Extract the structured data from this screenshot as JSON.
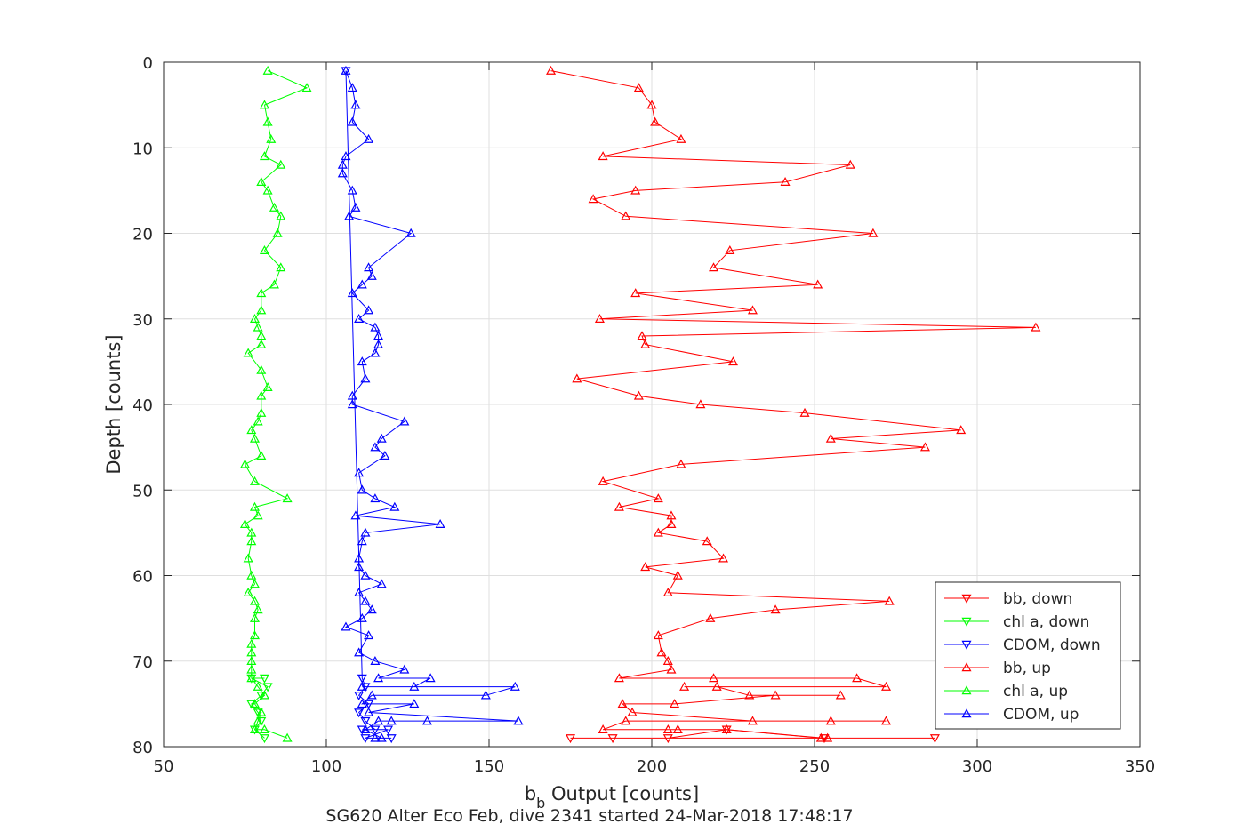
{
  "chart_data": {
    "type": "line",
    "title": "",
    "caption": "SG620 Alter Eco Feb, dive 2341 started 24-Mar-2018 17:48:17",
    "xlabel": {
      "base": "b",
      "subscript": "b",
      "rest": " Output [counts]"
    },
    "ylabel": "Depth [counts]",
    "xlim": [
      50,
      350
    ],
    "ylim": [
      0,
      80
    ],
    "y_reversed": true,
    "xticks": [
      50,
      100,
      150,
      200,
      250,
      300,
      350
    ],
    "yticks": [
      0,
      10,
      20,
      30,
      40,
      50,
      60,
      70,
      80
    ],
    "grid": true,
    "legend_position": "bottom-right",
    "series": [
      {
        "name": "bb, down",
        "color": "#ff0000",
        "marker": "triangle-down",
        "points": [
          [
            188,
            79
          ],
          [
            205,
            79
          ],
          [
            223,
            78
          ],
          [
            253,
            79
          ],
          [
            287,
            79
          ],
          [
            175,
            79
          ]
        ]
      },
      {
        "name": "chl a, down",
        "color": "#00ff00",
        "marker": "triangle-down",
        "points": [
          [
            81,
            79
          ],
          [
            78,
            78
          ],
          [
            80,
            77
          ],
          [
            79,
            76
          ],
          [
            77,
            75
          ],
          [
            80,
            74
          ],
          [
            82,
            73
          ],
          [
            77,
            72
          ],
          [
            81,
            72
          ]
        ]
      },
      {
        "name": "CDOM, down",
        "color": "#0000ff",
        "marker": "triangle-down",
        "points": [
          [
            120,
            79
          ],
          [
            112,
            79
          ],
          [
            119,
            78
          ],
          [
            111,
            78
          ],
          [
            115,
            78
          ],
          [
            112,
            77
          ],
          [
            110,
            76
          ],
          [
            113,
            75
          ],
          [
            110,
            74
          ],
          [
            112,
            73
          ],
          [
            111,
            72
          ],
          [
            106,
            1
          ]
        ]
      },
      {
        "name": "bb, up",
        "color": "#ff0000",
        "marker": "triangle-up",
        "points": [
          [
            254,
            79
          ],
          [
            252,
            79
          ],
          [
            223,
            78
          ],
          [
            205,
            78
          ],
          [
            208,
            78
          ],
          [
            185,
            78
          ],
          [
            192,
            77
          ],
          [
            255,
            77
          ],
          [
            272,
            77
          ],
          [
            231,
            77
          ],
          [
            194,
            76
          ],
          [
            191,
            75
          ],
          [
            207,
            75
          ],
          [
            238,
            74
          ],
          [
            258,
            74
          ],
          [
            230,
            74
          ],
          [
            220,
            73
          ],
          [
            210,
            73
          ],
          [
            272,
            73
          ],
          [
            263,
            72
          ],
          [
            219,
            72
          ],
          [
            190,
            72
          ],
          [
            206,
            71
          ],
          [
            205,
            70
          ],
          [
            203,
            69
          ],
          [
            202,
            67
          ],
          [
            218,
            65
          ],
          [
            238,
            64
          ],
          [
            273,
            63
          ],
          [
            205,
            62
          ],
          [
            208,
            60
          ],
          [
            198,
            59
          ],
          [
            222,
            58
          ],
          [
            217,
            56
          ],
          [
            202,
            55
          ],
          [
            206,
            54
          ],
          [
            206,
            53
          ],
          [
            190,
            52
          ],
          [
            202,
            51
          ],
          [
            185,
            49
          ],
          [
            209,
            47
          ],
          [
            284,
            45
          ],
          [
            255,
            44
          ],
          [
            295,
            43
          ],
          [
            247,
            41
          ],
          [
            215,
            40
          ],
          [
            196,
            39
          ],
          [
            177,
            37
          ],
          [
            225,
            35
          ],
          [
            198,
            33
          ],
          [
            197,
            32
          ],
          [
            318,
            31
          ],
          [
            184,
            30
          ],
          [
            231,
            29
          ],
          [
            195,
            27
          ],
          [
            251,
            26
          ],
          [
            219,
            24
          ],
          [
            224,
            22
          ],
          [
            268,
            20
          ],
          [
            192,
            18
          ],
          [
            182,
            16
          ],
          [
            195,
            15
          ],
          [
            241,
            14
          ],
          [
            261,
            12
          ],
          [
            185,
            11
          ],
          [
            209,
            9
          ],
          [
            201,
            7
          ],
          [
            200,
            5
          ],
          [
            196,
            3
          ],
          [
            169,
            1
          ]
        ]
      },
      {
        "name": "chl a, up",
        "color": "#00ff00",
        "marker": "triangle-up",
        "points": [
          [
            88,
            79
          ],
          [
            81,
            78
          ],
          [
            78,
            78
          ],
          [
            79,
            77
          ],
          [
            80,
            76
          ],
          [
            78,
            75
          ],
          [
            81,
            74
          ],
          [
            79,
            73
          ],
          [
            77,
            72
          ],
          [
            77,
            71
          ],
          [
            77,
            70
          ],
          [
            77,
            69
          ],
          [
            77,
            68
          ],
          [
            78,
            67
          ],
          [
            78,
            65
          ],
          [
            79,
            64
          ],
          [
            78,
            63
          ],
          [
            76,
            62
          ],
          [
            78,
            61
          ],
          [
            77,
            60
          ],
          [
            76,
            58
          ],
          [
            77,
            56
          ],
          [
            77,
            55
          ],
          [
            75,
            54
          ],
          [
            79,
            53
          ],
          [
            78,
            52
          ],
          [
            88,
            51
          ],
          [
            78,
            49
          ],
          [
            75,
            47
          ],
          [
            80,
            46
          ],
          [
            78,
            44
          ],
          [
            77,
            43
          ],
          [
            79,
            42
          ],
          [
            80,
            41
          ],
          [
            80,
            39
          ],
          [
            82,
            38
          ],
          [
            80,
            36
          ],
          [
            76,
            34
          ],
          [
            80,
            33
          ],
          [
            80,
            32
          ],
          [
            79,
            31
          ],
          [
            78,
            30
          ],
          [
            80,
            29
          ],
          [
            80,
            27
          ],
          [
            84,
            26
          ],
          [
            86,
            24
          ],
          [
            81,
            22
          ],
          [
            85,
            20
          ],
          [
            86,
            18
          ],
          [
            84,
            17
          ],
          [
            82,
            15
          ],
          [
            80,
            14
          ],
          [
            86,
            12
          ],
          [
            81,
            11
          ],
          [
            83,
            9
          ],
          [
            82,
            7
          ],
          [
            81,
            5
          ],
          [
            94,
            3
          ],
          [
            82,
            1
          ]
        ]
      },
      {
        "name": "CDOM, up",
        "color": "#0000ff",
        "marker": "triangle-up",
        "points": [
          [
            115,
            79
          ],
          [
            117,
            79
          ],
          [
            112,
            78
          ],
          [
            116,
            77
          ],
          [
            131,
            77
          ],
          [
            120,
            77
          ],
          [
            159,
            77
          ],
          [
            113,
            76
          ],
          [
            127,
            75
          ],
          [
            111,
            75
          ],
          [
            114,
            74
          ],
          [
            149,
            74
          ],
          [
            158,
            73
          ],
          [
            111,
            73
          ],
          [
            127,
            73
          ],
          [
            132,
            72
          ],
          [
            116,
            72
          ],
          [
            124,
            71
          ],
          [
            115,
            70
          ],
          [
            110,
            69
          ],
          [
            113,
            67
          ],
          [
            106,
            66
          ],
          [
            111,
            65
          ],
          [
            114,
            64
          ],
          [
            112,
            63
          ],
          [
            110,
            62
          ],
          [
            117,
            61
          ],
          [
            112,
            60
          ],
          [
            110,
            59
          ],
          [
            110,
            58
          ],
          [
            111,
            56
          ],
          [
            112,
            55
          ],
          [
            135,
            54
          ],
          [
            109,
            53
          ],
          [
            121,
            52
          ],
          [
            115,
            51
          ],
          [
            111,
            50
          ],
          [
            110,
            48
          ],
          [
            118,
            46
          ],
          [
            115,
            45
          ],
          [
            117,
            44
          ],
          [
            124,
            42
          ],
          [
            108,
            40
          ],
          [
            108,
            39
          ],
          [
            112,
            37
          ],
          [
            111,
            35
          ],
          [
            115,
            34
          ],
          [
            116,
            33
          ],
          [
            116,
            32
          ],
          [
            115,
            31
          ],
          [
            110,
            30
          ],
          [
            113,
            29
          ],
          [
            108,
            27
          ],
          [
            111,
            26
          ],
          [
            114,
            25
          ],
          [
            113,
            24
          ],
          [
            126,
            20
          ],
          [
            107,
            18
          ],
          [
            109,
            17
          ],
          [
            108,
            15
          ],
          [
            105,
            13
          ],
          [
            105,
            12
          ],
          [
            106,
            11
          ],
          [
            113,
            9
          ],
          [
            108,
            7
          ],
          [
            109,
            5
          ],
          [
            108,
            3
          ],
          [
            106,
            1
          ]
        ]
      }
    ]
  }
}
